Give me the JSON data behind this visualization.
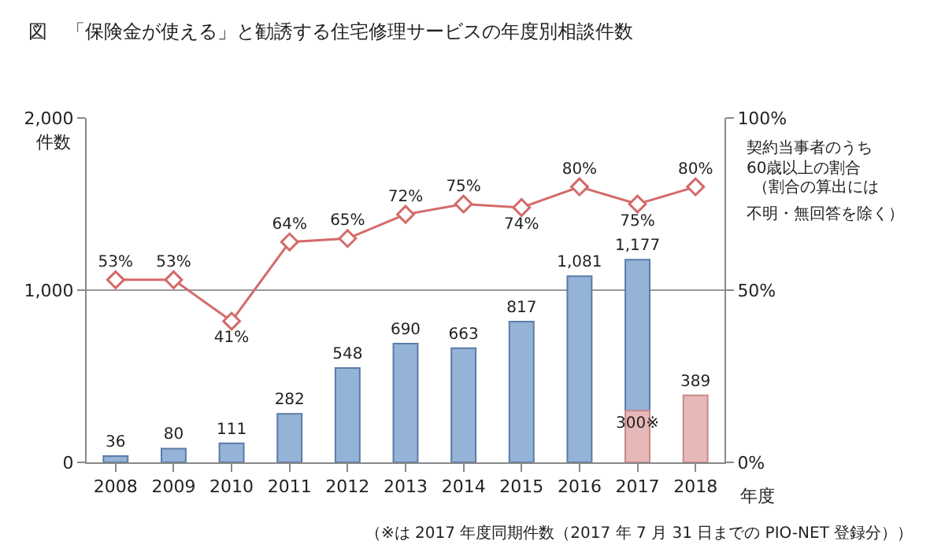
{
  "chart_data": {
    "type": "bar",
    "title": "図　「保険金が使える」と勧誘する住宅修理サービスの年度別相談件数",
    "categories": [
      "2008",
      "2009",
      "2010",
      "2011",
      "2012",
      "2013",
      "2014",
      "2015",
      "2016",
      "2017",
      "2018"
    ],
    "xlabel": "年度",
    "ylabel": "件数",
    "y2label": "契約当事者のうち60歳以上の割合",
    "series": [
      {
        "color": "#95b3d7",
        "values": [
          36,
          80,
          111,
          282,
          548,
          690,
          663,
          817,
          1081,
          1177,
          null
        ],
        "value_labels": [
          "36",
          "80",
          "111",
          "282",
          "548",
          "690",
          "663",
          "817",
          "1,081",
          "1,177",
          null
        ]
      },
      {
        "color": "#e6b9b8",
        "values": [
          null,
          null,
          null,
          null,
          null,
          null,
          null,
          null,
          null,
          300,
          389
        ],
        "value_labels": [
          null,
          null,
          null,
          null,
          null,
          null,
          null,
          null,
          null,
          "300※",
          "389"
        ]
      },
      {
        "type": "line",
        "axis": "y2",
        "color": "#d46a6a",
        "marker": "diamond",
        "values": [
          53,
          53,
          41,
          64,
          65,
          72,
          75,
          74,
          80,
          75,
          80
        ],
        "value_labels": [
          "53%",
          "53%",
          "41%",
          "64%",
          "65%",
          "72%",
          "75%",
          "74%",
          "80%",
          "75%",
          "80%"
        ]
      }
    ],
    "ylim": [
      0,
      2000
    ],
    "yticks": [
      {
        "value": 0,
        "label": "0"
      },
      {
        "value": 1000,
        "label": "1,000"
      },
      {
        "value": 2000,
        "label": "2,000"
      }
    ],
    "y2lim": [
      0,
      100
    ],
    "y2ticks": [
      {
        "value": 0,
        "label": "0%"
      },
      {
        "value": 50,
        "label": "50%"
      },
      {
        "value": 100,
        "label": "100%"
      }
    ],
    "grid": "y",
    "annotations": [
      "（割合の算出には",
      "不明・無回答を除く）",
      "（※は 2017 年度同期件数（2017 年 7 月 31 日までの PIO-NET 登録分））"
    ]
  }
}
